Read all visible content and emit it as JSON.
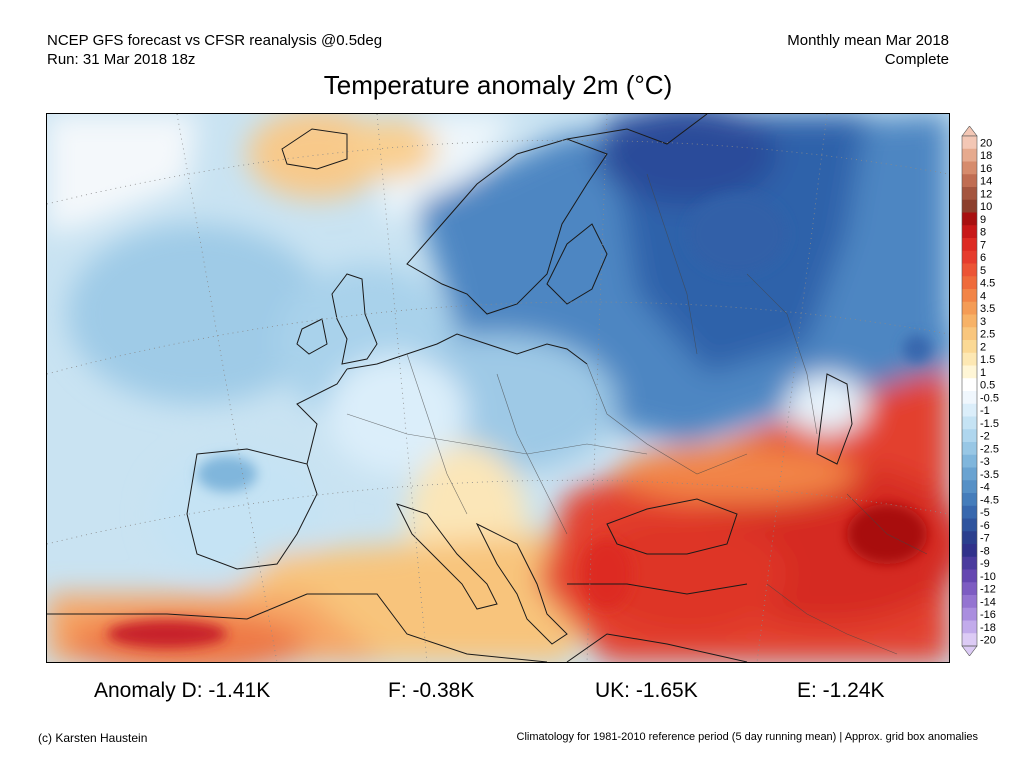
{
  "header": {
    "line1_left": "NCEP GFS forecast vs CFSR reanalysis @0.5deg",
    "line2_left": "Run: 31 Mar 2018 18z",
    "line1_right": "Monthly mean Mar 2018",
    "line2_right": "Complete"
  },
  "title": "Temperature anomaly 2m (°C)",
  "legend": {
    "labels": [
      "20",
      "18",
      "16",
      "14",
      "12",
      "10",
      "9",
      "8",
      "7",
      "6",
      "5",
      "4.5",
      "4",
      "3.5",
      "3",
      "2.5",
      "2",
      "1.5",
      "1",
      "0.5",
      "-0.5",
      "-1",
      "-1.5",
      "-2",
      "-2.5",
      "-3",
      "-3.5",
      "-4",
      "-4.5",
      "-5",
      "-6",
      "-7",
      "-8",
      "-9",
      "-10",
      "-12",
      "-14",
      "-16",
      "-18",
      "-20"
    ],
    "colors": [
      "#f3c7b5",
      "#e6aa8e",
      "#d68b6c",
      "#c06d52",
      "#a4553f",
      "#8c3f2d",
      "#a81010",
      "#c81818",
      "#dd2a22",
      "#e63c2d",
      "#ec5435",
      "#ef6b3b",
      "#f28447",
      "#f49c56",
      "#f7b267",
      "#f9c67d",
      "#fbd995",
      "#fde8b3",
      "#fff6d6",
      "#ffffff",
      "#f0f7fd",
      "#dbeefa",
      "#c5e3f4",
      "#afd6ee",
      "#98c7e5",
      "#80b6dc",
      "#6aa3d1",
      "#5690c6",
      "#457dbb",
      "#3868ae",
      "#2f549e",
      "#2b3f8e",
      "#30318b",
      "#4a3b9e",
      "#6547b1",
      "#7d5cc2",
      "#9474d1",
      "#aa8edf",
      "#c2abeb",
      "#dccbf5"
    ]
  },
  "stats": {
    "d": "Anomaly D: -1.41K",
    "f": "F: -0.38K",
    "uk": "UK: -1.65K",
    "e": "E: -1.24K"
  },
  "footer": {
    "left": "(c) Karsten Haustein",
    "right": "Climatology for 1981-2010 reference period (5 day running mean) | Approx. grid box anomalies"
  }
}
